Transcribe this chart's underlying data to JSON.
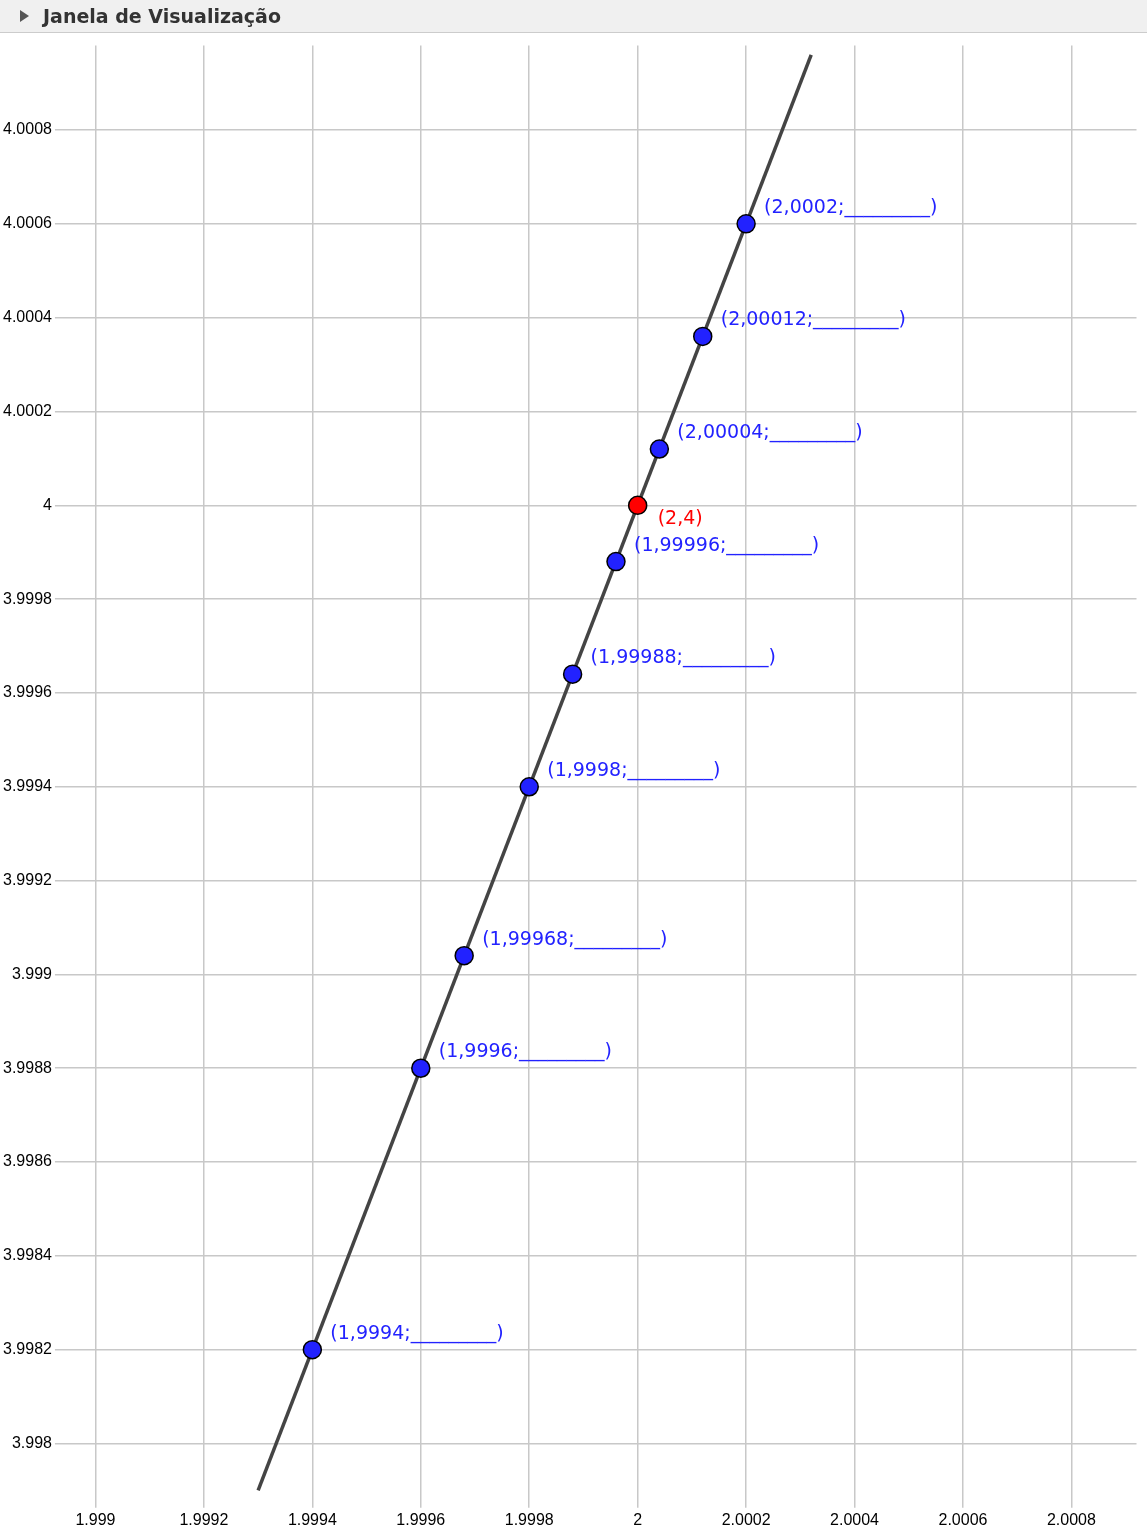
{
  "chart_data": {
    "type": "scatter",
    "title": "Janela de Visualização",
    "xlim": [
      1.99894,
      2.00092
    ],
    "ylim": [
      3.99788,
      4.00098
    ],
    "xticks": [
      1.999,
      1.9992,
      1.9994,
      1.9996,
      1.9998,
      2,
      2.0002,
      2.0004,
      2.0006,
      2.0008
    ],
    "yticks": [
      3.998,
      3.9982,
      3.9984,
      3.9986,
      3.9988,
      3.999,
      3.9992,
      3.9994,
      3.9996,
      3.9998,
      4,
      4.0002,
      4.0004,
      4.0006,
      4.0008
    ],
    "grid": true,
    "legend": false,
    "marker": "circle",
    "series": [
      {
        "type": "line",
        "color": "#444444",
        "x": [
          1.9993,
          2.00032
        ],
        "values": [
          3.9979,
          4.00096
        ],
        "marker": "none"
      },
      {
        "color": "#2222ff",
        "x": [
          1.9994,
          1.9996,
          1.99968,
          1.9998,
          1.99988,
          1.99996,
          2.00004,
          2.00012,
          2.0002
        ],
        "values": [
          3.9982,
          3.9988,
          3.99904,
          3.9994,
          3.99964,
          3.99988,
          4.00012,
          4.00036,
          4.0006
        ]
      },
      {
        "color": "#ff0000",
        "x": [
          2
        ],
        "values": [
          4
        ]
      }
    ],
    "annotations": [
      {
        "text": "(1,9994;_________)",
        "x": 1.9994,
        "y": 3.9982
      },
      {
        "text": "(1,9996;_________)",
        "x": 1.9996,
        "y": 3.9988
      },
      {
        "text": "(1,99968;_________)",
        "x": 1.99968,
        "y": 3.99904
      },
      {
        "text": "(1,9998;_________)",
        "x": 1.9998,
        "y": 3.9994
      },
      {
        "text": "(1,99988;_________)",
        "x": 1.99988,
        "y": 3.99964
      },
      {
        "text": "(1,99996;_________)",
        "x": 1.99996,
        "y": 3.99988
      },
      {
        "text": "(2,4)",
        "x": 2,
        "y": 4
      },
      {
        "text": "(2,00004;_________)",
        "x": 2.00004,
        "y": 4.00012
      },
      {
        "text": "(2,00012;_________)",
        "x": 2.00012,
        "y": 4.00036
      },
      {
        "text": "(2,0002;_________)",
        "x": 2.0002,
        "y": 4.0006
      }
    ]
  }
}
